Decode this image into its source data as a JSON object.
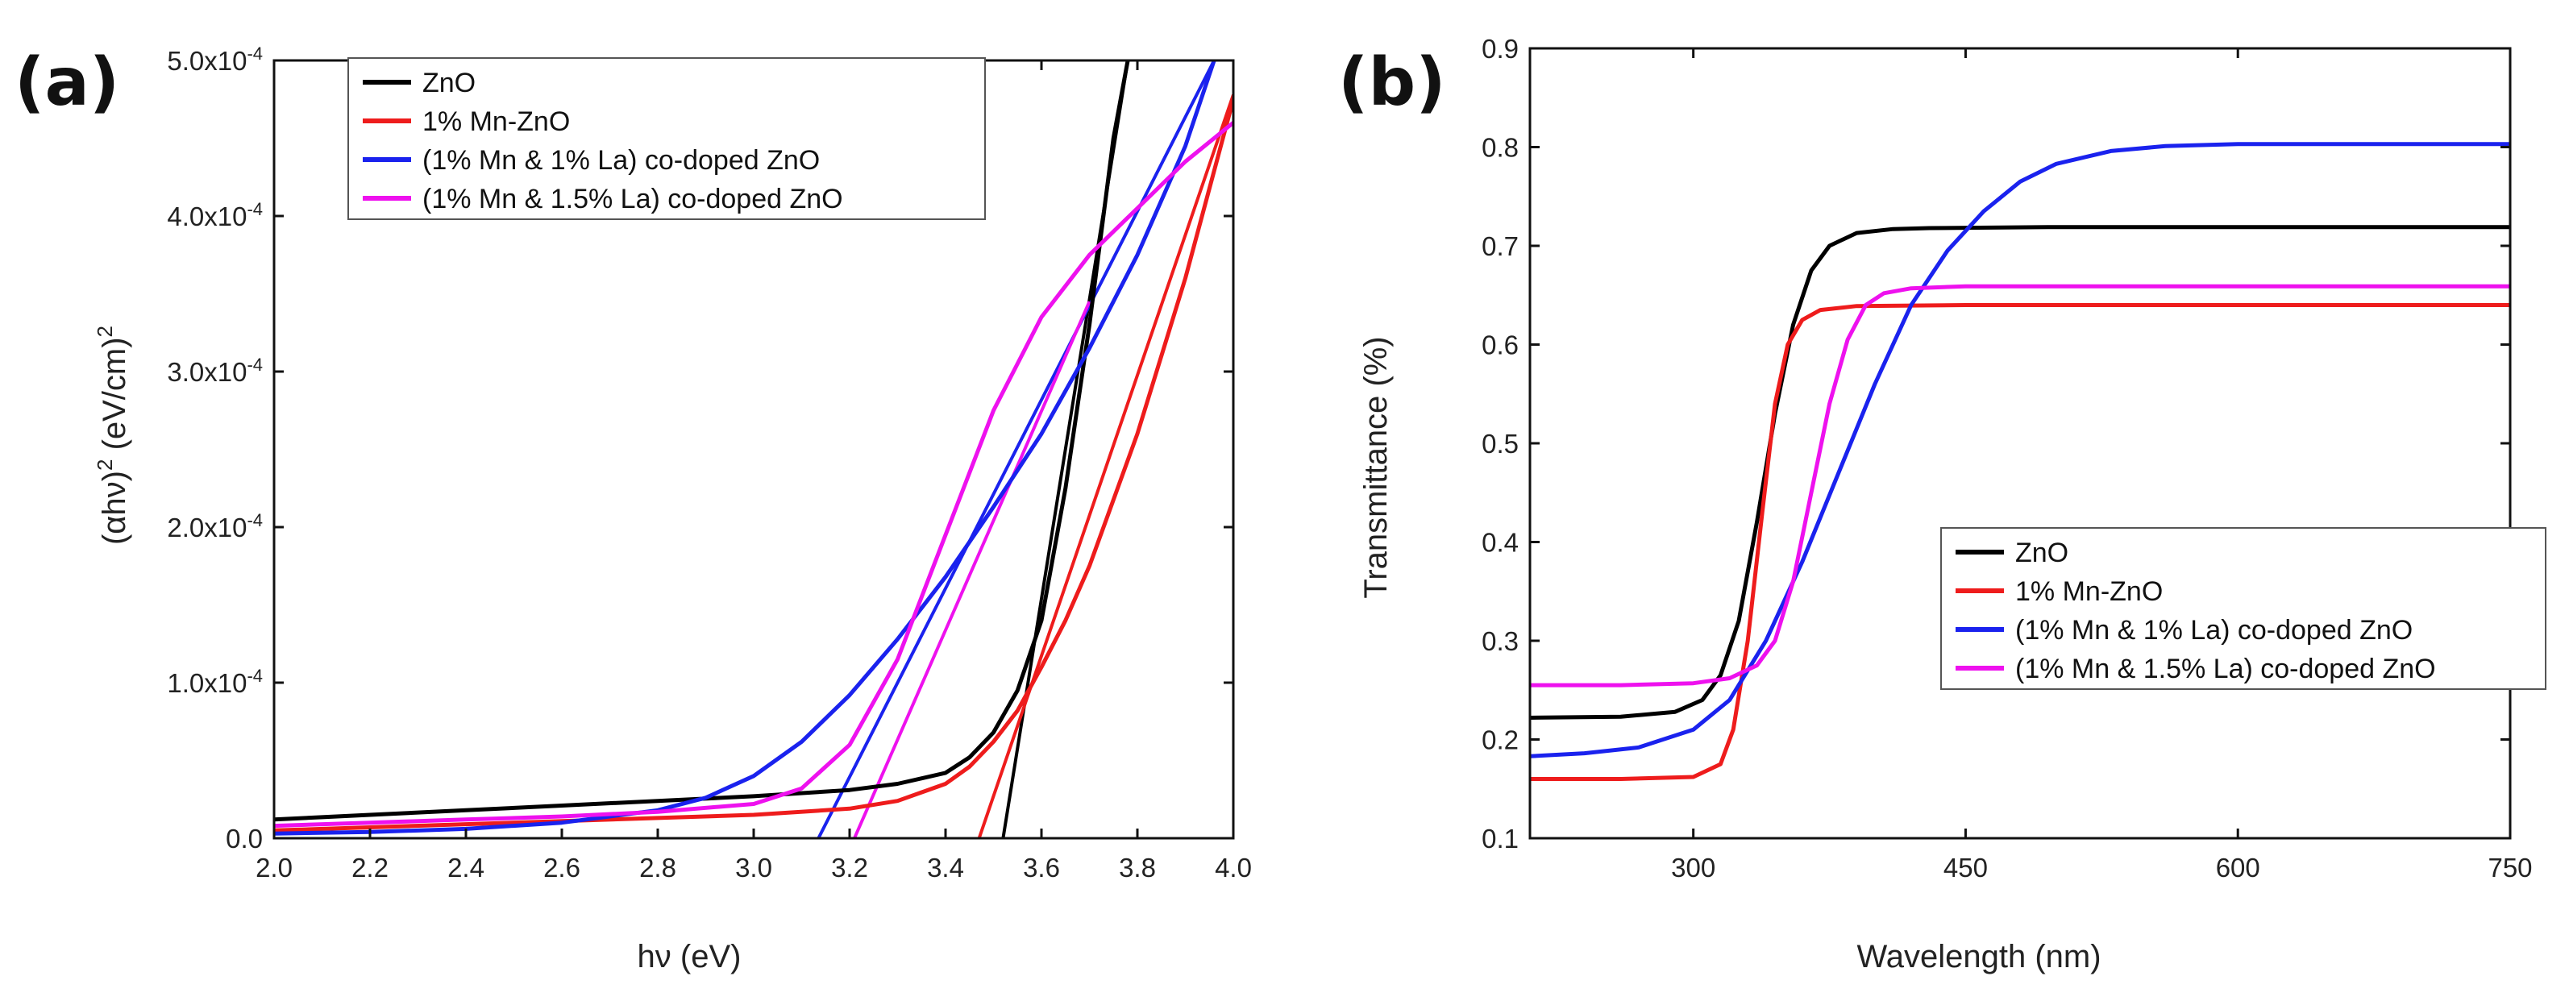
{
  "colors": {
    "ZnO": "#000000",
    "Mn": "#ee1c1c",
    "MnLa1": "#1a22ee",
    "MnLa15": "#ee11ee"
  },
  "chart_data": [
    {
      "type": "line",
      "panel_label": "(a)",
      "title": "",
      "xlabel": "hν (eV)",
      "ylabel_main": "(αhν)",
      "ylabel_sup": "2",
      "ylabel_rest": " (eV/cm)",
      "xlim": [
        2.0,
        4.0
      ],
      "ylim": [
        0,
        0.0005
      ],
      "xticks": [
        2.0,
        2.2,
        2.4,
        2.6,
        2.8,
        3.0,
        3.2,
        3.4,
        3.6,
        3.8,
        4.0
      ],
      "xtick_labels": [
        "2.0",
        "2.2",
        "2.4",
        "2.6",
        "2.8",
        "3.0",
        "3.2",
        "3.4",
        "3.6",
        "3.8",
        "4.0"
      ],
      "yticks": [
        0,
        0.0001,
        0.0002,
        0.0003,
        0.0004,
        0.0005
      ],
      "ytick_labels": [
        {
          "mantissa": "0.0",
          "exp": ""
        },
        {
          "mantissa": "1.0x10",
          "exp": "-4"
        },
        {
          "mantissa": "2.0x10",
          "exp": "-4"
        },
        {
          "mantissa": "3.0x10",
          "exp": "-4"
        },
        {
          "mantissa": "4.0x10",
          "exp": "-4"
        },
        {
          "mantissa": "5.0x10",
          "exp": "-4"
        }
      ],
      "legend": [
        "ZnO",
        "1% Mn-ZnO",
        "(1% Mn & 1% La) co-doped ZnO",
        "(1% Mn & 1.5% La) co-doped ZnO"
      ],
      "legend_position": "top-left",
      "series": [
        {
          "name": "ZnO",
          "color_key": "ZnO",
          "x": [
            2.0,
            2.2,
            2.4,
            2.6,
            2.8,
            3.0,
            3.2,
            3.3,
            3.4,
            3.45,
            3.5,
            3.55,
            3.6,
            3.65,
            3.7,
            3.75,
            3.78
          ],
          "y": [
            1.2e-05,
            1.5e-05,
            1.8e-05,
            2.1e-05,
            2.4e-05,
            2.7e-05,
            3.1e-05,
            3.5e-05,
            4.2e-05,
            5.2e-05,
            6.8e-05,
            9.5e-05,
            0.00014,
            0.000225,
            0.00033,
            0.00045,
            0.0005
          ]
        },
        {
          "name": "1% Mn-ZnO",
          "color_key": "Mn",
          "x": [
            2.0,
            2.2,
            2.4,
            2.6,
            2.8,
            3.0,
            3.2,
            3.3,
            3.4,
            3.45,
            3.5,
            3.55,
            3.6,
            3.65,
            3.7,
            3.8,
            3.9,
            4.0
          ],
          "y": [
            5e-06,
            7e-06,
            9e-06,
            1.1e-05,
            1.3e-05,
            1.5e-05,
            1.9e-05,
            2.4e-05,
            3.5e-05,
            4.6e-05,
            6.2e-05,
            8.2e-05,
            0.00011,
            0.00014,
            0.000175,
            0.00026,
            0.00036,
            0.000475
          ]
        },
        {
          "name": "(1% Mn & 1% La) co-doped ZnO",
          "color_key": "MnLa1",
          "x": [
            2.0,
            2.2,
            2.4,
            2.6,
            2.8,
            2.9,
            3.0,
            3.1,
            3.2,
            3.3,
            3.4,
            3.5,
            3.6,
            3.7,
            3.8,
            3.9,
            3.96
          ],
          "y": [
            3e-06,
            4e-06,
            6e-06,
            1e-05,
            1.8e-05,
            2.6e-05,
            4e-05,
            6.2e-05,
            9.2e-05,
            0.000128,
            0.000168,
            0.000213,
            0.00026,
            0.000315,
            0.000375,
            0.000445,
            0.0005
          ]
        },
        {
          "name": "(1% Mn & 1.5% La) co-doped ZnO",
          "color_key": "MnLa15",
          "x": [
            2.0,
            2.2,
            2.4,
            2.6,
            2.8,
            3.0,
            3.1,
            3.2,
            3.3,
            3.4,
            3.5,
            3.6,
            3.7,
            3.8,
            3.9,
            4.0
          ],
          "y": [
            8e-06,
            1e-05,
            1.2e-05,
            1.4e-05,
            1.7e-05,
            2.2e-05,
            3.2e-05,
            6e-05,
            0.000115,
            0.000195,
            0.000275,
            0.000335,
            0.000375,
            0.000405,
            0.000435,
            0.00046
          ]
        }
      ],
      "fit_lines": [
        {
          "color_key": "ZnO",
          "x": [
            3.52,
            3.78
          ],
          "y": [
            0,
            0.0005
          ]
        },
        {
          "color_key": "Mn",
          "x": [
            3.47,
            4.0
          ],
          "y": [
            0,
            0.000478
          ]
        },
        {
          "color_key": "MnLa1",
          "x": [
            3.135,
            3.96
          ],
          "y": [
            0,
            0.0005
          ]
        },
        {
          "color_key": "MnLa15",
          "x": [
            3.21,
            3.7
          ],
          "y": [
            0,
            0.000345
          ]
        }
      ]
    },
    {
      "type": "line",
      "panel_label": "(b)",
      "title": "",
      "xlabel": "Wavelength (nm)",
      "ylabel": "Transmittance (%)",
      "xlim": [
        210,
        750
      ],
      "ylim": [
        0.1,
        0.9
      ],
      "xticks": [
        300,
        450,
        600,
        750
      ],
      "xtick_labels": [
        "300",
        "450",
        "600",
        "750"
      ],
      "yticks": [
        0.1,
        0.2,
        0.3,
        0.4,
        0.5,
        0.6,
        0.7,
        0.8,
        0.9
      ],
      "ytick_labels": [
        "0.1",
        "0.2",
        "0.3",
        "0.4",
        "0.5",
        "0.6",
        "0.7",
        "0.8",
        "0.9"
      ],
      "legend": [
        "ZnO",
        "1% Mn-ZnO",
        "(1% Mn & 1% La) co-doped ZnO",
        "(1% Mn & 1.5% La) co-doped ZnO"
      ],
      "legend_position": "bottom-right",
      "series": [
        {
          "name": "ZnO",
          "color_key": "ZnO",
          "x": [
            210,
            260,
            290,
            305,
            315,
            325,
            335,
            345,
            355,
            365,
            375,
            390,
            410,
            430,
            500,
            600,
            750
          ],
          "y": [
            0.222,
            0.223,
            0.228,
            0.24,
            0.265,
            0.32,
            0.42,
            0.53,
            0.62,
            0.675,
            0.7,
            0.713,
            0.717,
            0.718,
            0.719,
            0.719,
            0.719
          ]
        },
        {
          "name": "1% Mn-ZnO",
          "color_key": "Mn",
          "x": [
            210,
            260,
            300,
            315,
            322,
            330,
            338,
            345,
            352,
            360,
            370,
            390,
            450,
            600,
            750
          ],
          "y": [
            0.16,
            0.16,
            0.162,
            0.175,
            0.21,
            0.3,
            0.43,
            0.54,
            0.6,
            0.625,
            0.635,
            0.639,
            0.64,
            0.64,
            0.64
          ]
        },
        {
          "name": "(1% Mn & 1% La) co-doped ZnO",
          "color_key": "MnLa1",
          "x": [
            210,
            240,
            270,
            300,
            320,
            340,
            360,
            380,
            400,
            420,
            440,
            460,
            480,
            500,
            530,
            560,
            600,
            650,
            750
          ],
          "y": [
            0.183,
            0.186,
            0.192,
            0.21,
            0.24,
            0.3,
            0.38,
            0.47,
            0.56,
            0.64,
            0.695,
            0.735,
            0.765,
            0.783,
            0.796,
            0.801,
            0.803,
            0.803,
            0.803
          ]
        },
        {
          "name": "(1% Mn & 1.5% La) co-doped ZnO",
          "color_key": "MnLa15",
          "x": [
            210,
            260,
            300,
            320,
            335,
            345,
            355,
            365,
            375,
            385,
            395,
            405,
            420,
            450,
            500,
            750
          ],
          "y": [
            0.255,
            0.255,
            0.257,
            0.262,
            0.275,
            0.3,
            0.36,
            0.45,
            0.54,
            0.605,
            0.64,
            0.652,
            0.657,
            0.659,
            0.659,
            0.659
          ]
        }
      ]
    }
  ]
}
